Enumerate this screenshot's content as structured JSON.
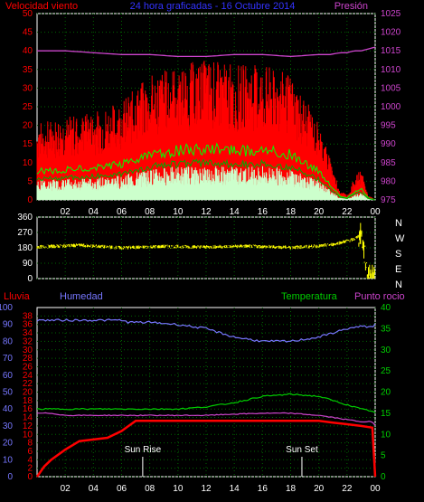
{
  "header": {
    "title": "24 hora graficadas - 16 Octubre 2014",
    "wind_label": "Velocidad viento",
    "pressure_label": "Presión"
  },
  "bottom_header": {
    "rain_label": "Lluvia",
    "humidity_label": "Humedad",
    "temp_label": "Temperatura",
    "dew_label": "Punto rocio"
  },
  "colors": {
    "wind": "#ff0000",
    "gust": "#ff0000",
    "pressure": "#cc44cc",
    "direction": "#ffff00",
    "rain": "#ff0000",
    "humidity": "#7777ff",
    "temp": "#00cc00",
    "dew": "#cc44cc",
    "axis": "#ffffff",
    "grid": "#006600"
  },
  "annotations": {
    "sunrise": "Sun Rise",
    "sunset": "Sun Set"
  },
  "chart_data": [
    {
      "type": "line",
      "title": "24 hora graficadas - 16 Octubre 2014",
      "x_ticks": [
        "02",
        "04",
        "06",
        "08",
        "10",
        "12",
        "14",
        "16",
        "18",
        "20",
        "22",
        "00"
      ],
      "y_left_ticks": [
        "0",
        "5",
        "10",
        "15",
        "20",
        "25",
        "30",
        "35",
        "40",
        "45",
        "50"
      ],
      "y_right_ticks": [
        "975",
        "980",
        "985",
        "990",
        "995",
        "1000",
        "1005",
        "1010",
        "1015",
        "1020",
        "1025"
      ],
      "ylim_left": [
        0,
        50
      ],
      "ylim_right": [
        975,
        1025
      ],
      "x_hours": [
        0,
        2,
        4,
        6,
        8,
        10,
        12,
        14,
        16,
        18,
        20,
        20.8,
        21.5,
        22,
        22.5,
        23,
        23.5,
        24
      ],
      "series": [
        {
          "name": "Velocidad viento",
          "values": [
            15,
            16,
            17,
            19,
            24,
            26,
            27,
            26,
            26,
            24,
            15,
            8,
            2,
            1,
            4,
            6,
            1,
            0
          ]
        },
        {
          "name": "Presión",
          "values": [
            1015,
            1015,
            1014.5,
            1014,
            1014,
            1013.5,
            1013.5,
            1014,
            1014,
            1013.5,
            1014,
            1014,
            1014.5,
            1014.5,
            1015,
            1015,
            1015.5,
            1016
          ]
        }
      ]
    },
    {
      "type": "scatter",
      "y_ticks": [
        "0",
        "90",
        "180",
        "270",
        "360"
      ],
      "ylim": [
        0,
        360
      ],
      "direction_letters": [
        "N",
        "W",
        "S",
        "E",
        "N"
      ],
      "x_hours": [
        0,
        3,
        6,
        9,
        12,
        15,
        18,
        20,
        21,
        22,
        22.5,
        23,
        23.5,
        24
      ],
      "values": [
        185,
        195,
        180,
        188,
        185,
        190,
        182,
        190,
        200,
        220,
        230,
        260,
        20,
        10
      ]
    },
    {
      "type": "line",
      "x_ticks": [
        "02",
        "04",
        "06",
        "08",
        "10",
        "12",
        "14",
        "16",
        "18",
        "20",
        "22",
        "00"
      ],
      "rain_ticks": [
        "0",
        "10",
        "20",
        "30",
        "40",
        "50",
        "60",
        "70",
        "80",
        "90",
        "100"
      ],
      "humidity_ticks": [
        "0",
        "2",
        "4",
        "6",
        "8",
        "10",
        "12",
        "14",
        "16",
        "18",
        "20",
        "22",
        "24",
        "26",
        "28",
        "30",
        "32",
        "34",
        "36",
        "38"
      ],
      "temp_ticks": [
        "0",
        "5",
        "10",
        "15",
        "20",
        "25",
        "30",
        "35",
        "40"
      ],
      "ylim_rain": [
        0,
        100
      ],
      "ylim_humidity": [
        0,
        40
      ],
      "ylim_temp": [
        0,
        40
      ],
      "x_hours": [
        0,
        0.5,
        1,
        2,
        3,
        4,
        5,
        6,
        6.5,
        7,
        8,
        10,
        12,
        14,
        16,
        18,
        20,
        21,
        22,
        23,
        23.8,
        24
      ],
      "series": [
        {
          "name": "Lluvia",
          "values": [
            0,
            6,
            10,
            16,
            21,
            22,
            23,
            27,
            30,
            33,
            33,
            33,
            33,
            33,
            33,
            33,
            33,
            32,
            31,
            30,
            29,
            0
          ]
        },
        {
          "name": "Humedad",
          "values": [
            37,
            37,
            37,
            37,
            37,
            37,
            37,
            37,
            36.5,
            36.5,
            36.5,
            36,
            35,
            33,
            32,
            32,
            33,
            34,
            35,
            35.5,
            35.5,
            36
          ]
        },
        {
          "name": "Temperatura",
          "values": [
            16,
            16,
            16,
            16,
            16,
            16,
            16,
            16,
            16,
            16,
            16,
            16,
            16.5,
            17.5,
            19,
            19.5,
            19,
            18,
            17,
            16,
            15.5,
            15
          ]
        },
        {
          "name": "Punto rocio",
          "values": [
            15,
            15,
            15,
            14.5,
            14.5,
            14.5,
            14.5,
            14.5,
            14.5,
            14.5,
            14.5,
            14.5,
            14.5,
            14.8,
            15,
            15,
            14.5,
            14,
            13.5,
            13,
            13,
            12
          ]
        }
      ],
      "markers": [
        {
          "label": "Sun Rise",
          "hour": 7.5
        },
        {
          "label": "Sun Set",
          "hour": 18.8
        }
      ]
    }
  ]
}
